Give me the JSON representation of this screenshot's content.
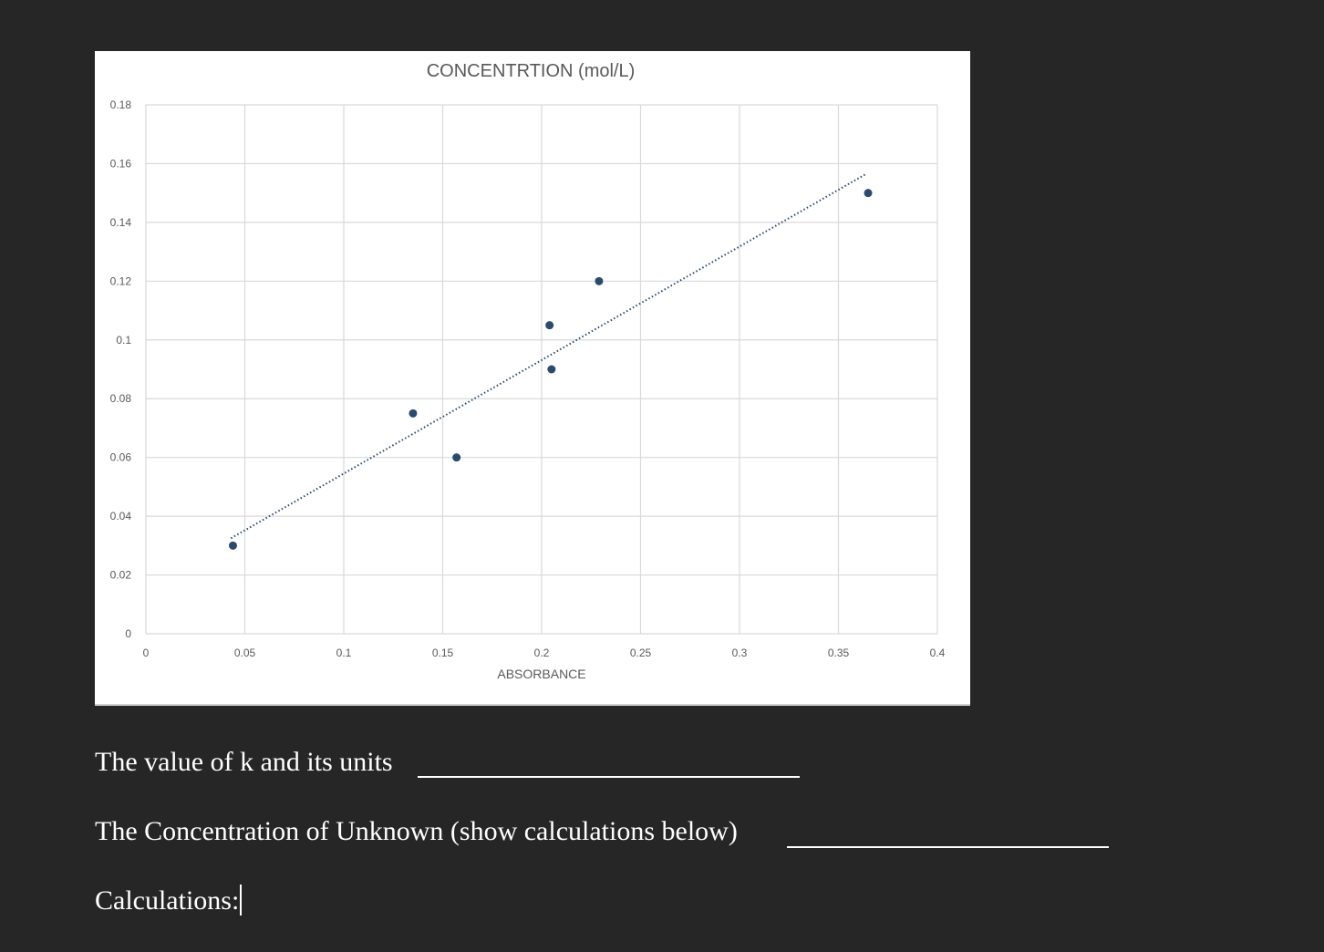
{
  "chart_data": {
    "type": "scatter",
    "title": "CONCENTRTION (mol/L)",
    "xlabel": "ABSORBANCE",
    "ylabel": "",
    "xlim": [
      0,
      0.4
    ],
    "ylim": [
      0,
      0.18
    ],
    "x_ticks": [
      "0",
      "0.05",
      "0.1",
      "0.15",
      "0.2",
      "0.25",
      "0.3",
      "0.35",
      "0.4"
    ],
    "y_ticks": [
      "0",
      "0.02",
      "0.04",
      "0.06",
      "0.08",
      "0.1",
      "0.12",
      "0.14",
      "0.16",
      "0.18"
    ],
    "grid": true,
    "legend": "none",
    "series": [
      {
        "points": [
          {
            "x": 0.044,
            "y": 0.03
          },
          {
            "x": 0.135,
            "y": 0.075
          },
          {
            "x": 0.157,
            "y": 0.06
          },
          {
            "x": 0.204,
            "y": 0.105
          },
          {
            "x": 0.205,
            "y": 0.09
          },
          {
            "x": 0.229,
            "y": 0.12
          },
          {
            "x": 0.365,
            "y": 0.15
          }
        ],
        "color": "#2e4a6b"
      }
    ],
    "trendline": {
      "style": "dotted",
      "color": "#2e4a6b",
      "start": {
        "x": 0.043,
        "y": 0.0325
      },
      "end": {
        "x": 0.364,
        "y": 0.1565
      }
    },
    "colors": {
      "grid": "#d9d9d9",
      "tick_text": "#595959",
      "title_text": "#595959"
    }
  },
  "document": {
    "line1": "The value of k and its units",
    "line2": "The Concentration of Unknown (show calculations below)",
    "line3": "Calculations:"
  },
  "colors": {
    "background": "#262626",
    "text": "#ffffff",
    "chart_background": "#ffffff"
  }
}
